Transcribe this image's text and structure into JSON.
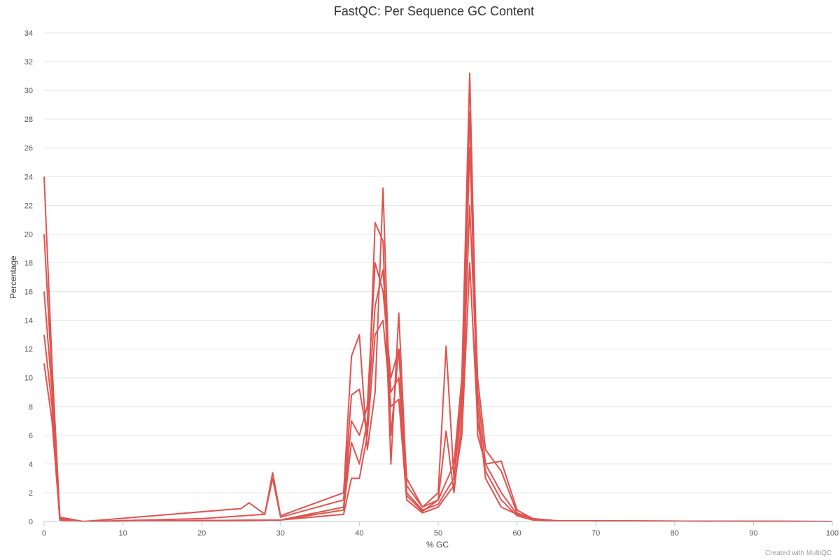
{
  "chart_data": {
    "type": "line",
    "title": "FastQC: Per Sequence GC Content",
    "xlabel": "% GC",
    "ylabel": "Percentage",
    "xlim": [
      0,
      100
    ],
    "ylim": [
      0,
      34
    ],
    "x_ticks": [
      "0",
      "10",
      "20",
      "30",
      "40",
      "50",
      "60",
      "70",
      "80",
      "90",
      "100"
    ],
    "y_ticks": [
      "0",
      "2",
      "4",
      "6",
      "8",
      "10",
      "12",
      "14",
      "16",
      "18",
      "20",
      "22",
      "24",
      "26",
      "28",
      "30",
      "32",
      "34"
    ],
    "grid": true,
    "legend": "none",
    "series_color": "#e0534f",
    "series": [
      {
        "x": [
          0,
          1,
          2,
          5,
          20,
          28,
          29,
          30,
          38,
          39,
          40,
          41,
          42,
          43,
          44,
          45,
          46,
          48,
          50,
          52,
          53,
          54,
          55,
          56,
          58,
          60,
          62,
          65,
          70,
          100
        ],
        "y": [
          24.0,
          11.0,
          0.3,
          0,
          0.2,
          0.5,
          3.4,
          0.4,
          2.0,
          11.5,
          13.0,
          5.0,
          9.0,
          23.2,
          6.0,
          12.0,
          3.0,
          1.0,
          1.5,
          4.0,
          10.0,
          31.2,
          8.0,
          3.0,
          1.0,
          0.5,
          0.2,
          0.05,
          0.02,
          0
        ]
      },
      {
        "x": [
          0,
          1,
          2,
          5,
          25,
          26,
          28,
          29,
          30,
          38,
          39,
          40,
          41,
          42,
          43,
          44,
          45,
          46,
          48,
          50,
          51,
          52,
          53,
          54,
          55,
          56,
          58,
          60,
          62,
          65,
          100
        ],
        "y": [
          20.0,
          10.0,
          0.2,
          0,
          0.9,
          1.3,
          0.5,
          3.0,
          0.3,
          1.5,
          8.8,
          9.2,
          6.0,
          20.8,
          19.5,
          4.0,
          14.5,
          2.5,
          1.0,
          2.0,
          12.2,
          3.0,
          9.0,
          28.5,
          6.0,
          4.0,
          4.2,
          0.8,
          0.2,
          0.05,
          0
        ]
      },
      {
        "x": [
          0,
          1,
          2,
          5,
          30,
          38,
          39,
          40,
          41,
          42,
          43,
          44,
          45,
          46,
          48,
          50,
          52,
          53,
          54,
          55,
          56,
          58,
          60,
          62,
          65,
          100
        ],
        "y": [
          16.0,
          9.0,
          0.1,
          0,
          0.1,
          1.0,
          7.0,
          6.0,
          8.0,
          18.0,
          16.0,
          10.0,
          12.0,
          2.0,
          0.8,
          1.2,
          3.0,
          8.0,
          26.0,
          10.0,
          5.0,
          3.5,
          0.6,
          0.2,
          0.05,
          0
        ]
      },
      {
        "x": [
          0,
          1,
          2,
          5,
          30,
          38,
          39,
          40,
          41,
          42,
          43,
          44,
          45,
          46,
          48,
          50,
          51,
          52,
          53,
          54,
          55,
          56,
          58,
          60,
          62,
          65,
          100
        ],
        "y": [
          13.0,
          8.0,
          0.1,
          0,
          0.1,
          0.8,
          5.5,
          4.0,
          7.0,
          15.0,
          17.5,
          9.0,
          10.0,
          1.8,
          0.7,
          1.5,
          6.3,
          2.0,
          7.0,
          22.0,
          9.0,
          4.0,
          2.0,
          0.5,
          0.2,
          0.05,
          0
        ]
      },
      {
        "x": [
          0,
          1,
          2,
          5,
          30,
          38,
          39,
          40,
          41,
          42,
          43,
          44,
          45,
          46,
          48,
          50,
          52,
          53,
          54,
          55,
          56,
          58,
          60,
          62,
          65,
          100
        ],
        "y": [
          11.0,
          7.0,
          0.1,
          0,
          0.1,
          0.5,
          3.0,
          3.0,
          6.0,
          13.0,
          14.0,
          8.0,
          8.5,
          1.5,
          0.6,
          1.0,
          2.5,
          6.0,
          18.0,
          7.0,
          3.5,
          1.5,
          0.4,
          0.1,
          0.05,
          0
        ]
      }
    ],
    "credit": "Created with MultiQC"
  }
}
